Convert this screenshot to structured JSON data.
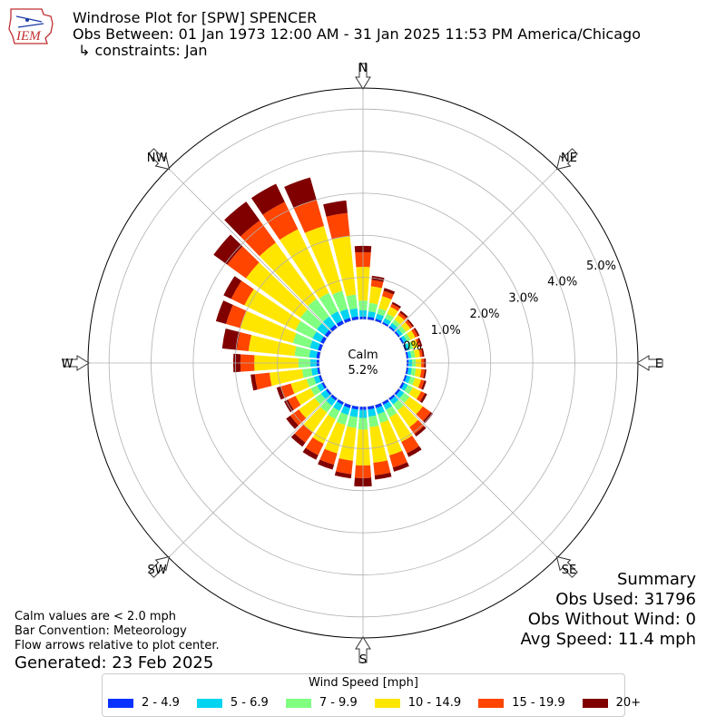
{
  "header": {
    "logo_text": "IEM",
    "title": "Windrose Plot for [SPW] SPENCER",
    "obs_between": "Obs Between: 01 Jan 1973 12:00 AM - 31 Jan 2025 11:53 PM America/Chicago",
    "constraints": "↳ constraints: Jan"
  },
  "notes": {
    "calm_def": "Calm values are < 2.0 mph",
    "bar_convention": "Bar Convention: Meteorology",
    "flow_arrows": "Flow arrows relative to plot center.",
    "generated": "Generated: 23 Feb 2025"
  },
  "summary": {
    "title": "Summary",
    "obs_used": "Obs Used: 31796",
    "obs_without_wind": "Obs Without Wind: 0",
    "avg_speed": "Avg Speed: 11.4 mph"
  },
  "chart_data": {
    "type": "windrose",
    "calm_label": "Calm",
    "calm_value": "5.2%",
    "directions": [
      "N",
      "NE",
      "E",
      "SE",
      "S",
      "SW",
      "W",
      "NW"
    ],
    "radial_ticks": [
      "0.0%",
      "1.0%",
      "2.0%",
      "3.0%",
      "4.0%",
      "5.0%"
    ],
    "radial_tick_values": [
      0,
      1,
      2,
      3,
      4,
      5
    ],
    "rmax": 5.5,
    "bin_angles_deg": [
      0,
      10,
      20,
      30,
      40,
      50,
      60,
      70,
      80,
      90,
      100,
      110,
      120,
      130,
      140,
      150,
      160,
      170,
      180,
      190,
      200,
      210,
      220,
      230,
      240,
      250,
      260,
      270,
      280,
      290,
      300,
      310,
      320,
      330,
      340,
      350
    ],
    "legend_title": "Wind Speed [mph]",
    "bins": [
      {
        "label": "2 - 4.9",
        "color": "#0a32ff"
      },
      {
        "label": "5 - 6.9",
        "color": "#00d4f0"
      },
      {
        "label": "7 - 9.9",
        "color": "#80ff80"
      },
      {
        "label": "10 - 14.9",
        "color": "#ffe600"
      },
      {
        "label": "15 - 19.9",
        "color": "#ff4500"
      },
      {
        "label": "20+",
        "color": "#800000"
      }
    ],
    "cumulative": [
      [
        0.07,
        0.22,
        0.45,
        1.25,
        1.6,
        1.75
      ],
      [
        0.07,
        0.2,
        0.4,
        0.8,
        0.95,
        1.05
      ],
      [
        0.06,
        0.18,
        0.32,
        0.62,
        0.75,
        0.82
      ],
      [
        0.05,
        0.15,
        0.27,
        0.45,
        0.53,
        0.58
      ],
      [
        0.05,
        0.14,
        0.24,
        0.38,
        0.45,
        0.5
      ],
      [
        0.05,
        0.13,
        0.23,
        0.36,
        0.42,
        0.46
      ],
      [
        0.05,
        0.13,
        0.22,
        0.35,
        0.42,
        0.46
      ],
      [
        0.05,
        0.12,
        0.21,
        0.33,
        0.39,
        0.43
      ],
      [
        0.05,
        0.12,
        0.21,
        0.33,
        0.39,
        0.43
      ],
      [
        0.05,
        0.13,
        0.22,
        0.35,
        0.42,
        0.46
      ],
      [
        0.05,
        0.13,
        0.23,
        0.36,
        0.44,
        0.48
      ],
      [
        0.05,
        0.14,
        0.25,
        0.4,
        0.48,
        0.53
      ],
      [
        0.06,
        0.15,
        0.28,
        0.5,
        0.6,
        0.66
      ],
      [
        0.06,
        0.17,
        0.33,
        0.72,
        0.95,
        1.02
      ],
      [
        0.06,
        0.18,
        0.36,
        0.85,
        1.05,
        1.12
      ],
      [
        0.07,
        0.2,
        0.4,
        1.05,
        1.35,
        1.45
      ],
      [
        0.08,
        0.23,
        0.45,
        1.25,
        1.55,
        1.65
      ],
      [
        0.08,
        0.25,
        0.5,
        1.35,
        1.65,
        1.75
      ],
      [
        0.08,
        0.27,
        0.55,
        1.4,
        1.7,
        1.9
      ],
      [
        0.08,
        0.26,
        0.52,
        1.3,
        1.62,
        1.72
      ],
      [
        0.08,
        0.25,
        0.5,
        1.2,
        1.48,
        1.6
      ],
      [
        0.07,
        0.23,
        0.45,
        1.1,
        1.4,
        1.52
      ],
      [
        0.07,
        0.22,
        0.42,
        1.0,
        1.3,
        1.42
      ],
      [
        0.06,
        0.2,
        0.38,
        0.85,
        1.1,
        1.22
      ],
      [
        0.06,
        0.18,
        0.35,
        0.75,
        0.95,
        1.05
      ],
      [
        0.06,
        0.18,
        0.36,
        0.75,
        1.0,
        1.1
      ],
      [
        0.06,
        0.2,
        0.42,
        1.2,
        1.55,
        1.65
      ],
      [
        0.07,
        0.22,
        0.5,
        1.55,
        1.88,
        2.05
      ],
      [
        0.08,
        0.25,
        0.6,
        1.7,
        1.98,
        2.33
      ],
      [
        0.08,
        0.28,
        0.7,
        2.0,
        2.35,
        2.6
      ],
      [
        0.09,
        0.3,
        0.75,
        2.1,
        2.45,
        2.65
      ],
      [
        0.09,
        0.32,
        0.8,
        2.4,
        2.95,
        3.35
      ],
      [
        0.09,
        0.33,
        0.85,
        2.5,
        3.15,
        3.7
      ],
      [
        0.09,
        0.33,
        0.82,
        2.5,
        3.22,
        3.7
      ],
      [
        0.08,
        0.3,
        0.75,
        2.35,
        3.0,
        3.55
      ],
      [
        0.08,
        0.27,
        0.6,
        2.0,
        2.55,
        2.85
      ]
    ]
  }
}
